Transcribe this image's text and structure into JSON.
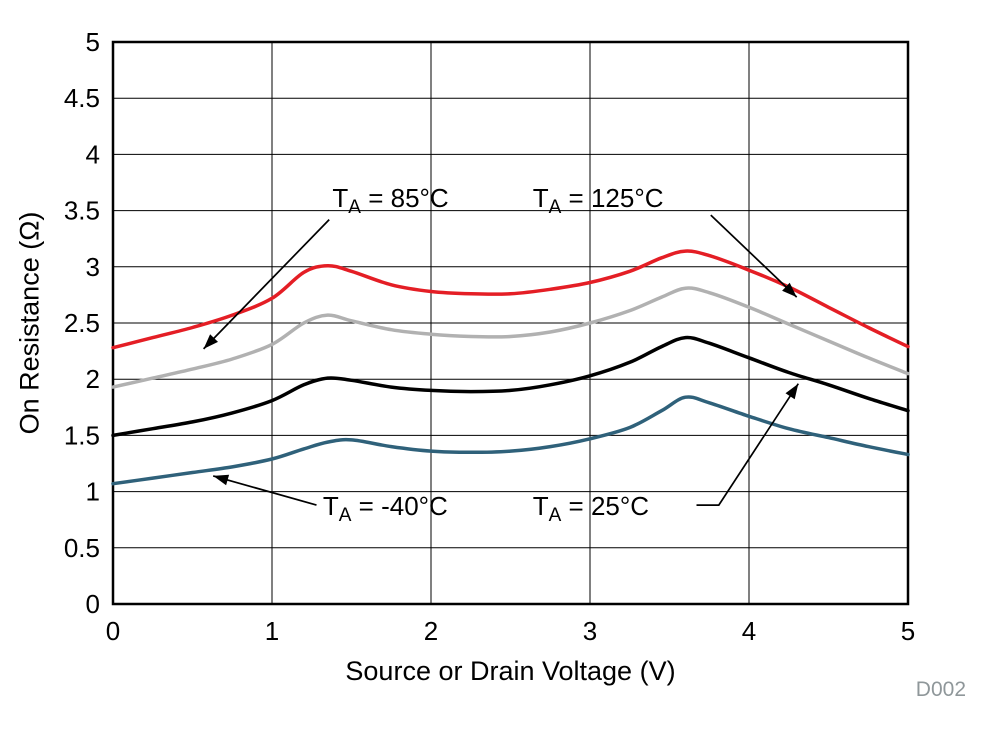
{
  "chart_data": {
    "type": "line",
    "title": "",
    "xlabel": "Source or Drain Voltage (V)",
    "ylabel": "On Resistance (Ω)",
    "watermark": "D002",
    "xlim": [
      0,
      5
    ],
    "ylim": [
      0,
      5
    ],
    "xticks": [
      "0",
      "1",
      "2",
      "3",
      "4",
      "5"
    ],
    "yticks": [
      "0",
      "0.5",
      "1",
      "1.5",
      "2",
      "2.5",
      "3",
      "3.5",
      "4",
      "4.5",
      "5"
    ],
    "grid": true,
    "grid_color": "#000000",
    "axis_color": "#000000",
    "x": [
      0,
      0.25,
      0.5,
      0.75,
      1,
      1.2,
      1.35,
      1.5,
      1.75,
      2,
      2.25,
      2.5,
      2.75,
      3,
      3.25,
      3.45,
      3.6,
      3.75,
      4,
      4.25,
      4.5,
      4.75,
      5
    ],
    "series": [
      {
        "name": "TA = -40°C",
        "color": "#2f617a",
        "values": [
          1.07,
          1.12,
          1.17,
          1.22,
          1.29,
          1.38,
          1.44,
          1.46,
          1.4,
          1.36,
          1.35,
          1.36,
          1.4,
          1.47,
          1.57,
          1.72,
          1.84,
          1.79,
          1.67,
          1.56,
          1.48,
          1.4,
          1.33
        ]
      },
      {
        "name": "TA = 25°C",
        "color": "#000000",
        "values": [
          1.5,
          1.56,
          1.62,
          1.7,
          1.81,
          1.95,
          2.01,
          1.99,
          1.93,
          1.9,
          1.89,
          1.9,
          1.95,
          2.03,
          2.15,
          2.29,
          2.37,
          2.32,
          2.19,
          2.06,
          1.95,
          1.83,
          1.72
        ]
      },
      {
        "name": "TA = 85°C",
        "color": "#b1b1b1",
        "values": [
          1.93,
          2.01,
          2.09,
          2.18,
          2.31,
          2.5,
          2.57,
          2.52,
          2.44,
          2.4,
          2.38,
          2.38,
          2.42,
          2.5,
          2.61,
          2.73,
          2.81,
          2.77,
          2.64,
          2.49,
          2.34,
          2.19,
          2.05
        ]
      },
      {
        "name": "TA = 125°C",
        "color": "#e41e25",
        "values": [
          2.28,
          2.37,
          2.46,
          2.57,
          2.72,
          2.95,
          3.01,
          2.96,
          2.84,
          2.78,
          2.76,
          2.76,
          2.8,
          2.86,
          2.96,
          3.08,
          3.14,
          3.1,
          2.97,
          2.82,
          2.64,
          2.46,
          2.29
        ]
      }
    ],
    "annotations": [
      {
        "main": "T",
        "sub": "A",
        "rest": " = 85°C",
        "x": 1.38,
        "y": 3.53,
        "line": [
          [
            1.36,
            3.42
          ],
          [
            0.57,
            2.27
          ]
        ]
      },
      {
        "main": "T",
        "sub": "A",
        "rest": " = 125°C",
        "x": 2.64,
        "y": 3.53,
        "line": [
          [
            3.76,
            3.46
          ],
          [
            4.3,
            2.73
          ]
        ]
      },
      {
        "main": "T",
        "sub": "A",
        "rest": " = -40°C",
        "x": 1.32,
        "y": 0.79,
        "line": [
          [
            1.28,
            0.88
          ],
          [
            0.63,
            1.14
          ]
        ]
      },
      {
        "main": "T",
        "sub": "A",
        "rest": " = 25°C",
        "x": 2.64,
        "y": 0.79,
        "line": [
          [
            3.67,
            0.88
          ],
          [
            3.81,
            0.88
          ],
          [
            4.31,
            1.96
          ]
        ]
      }
    ]
  }
}
